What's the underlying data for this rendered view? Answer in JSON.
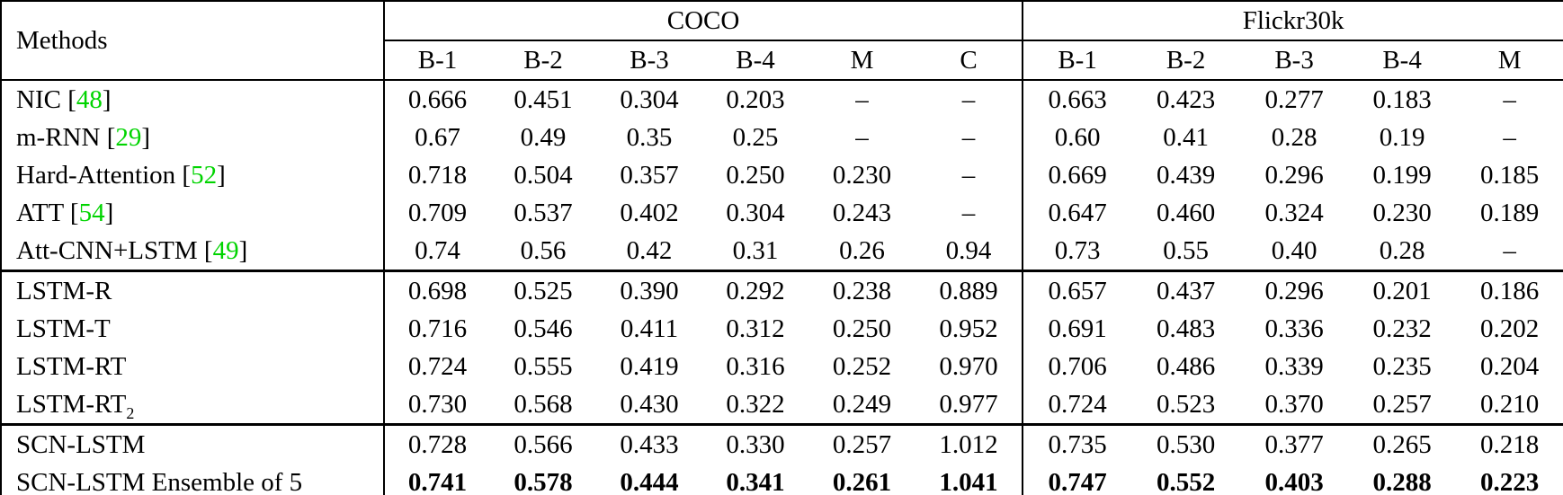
{
  "table": {
    "colors": {
      "citation_green": "#00D400",
      "border": "#000000",
      "background": "#ffffff",
      "text": "#000000"
    },
    "citation_brackets": [
      "[",
      "]"
    ],
    "header": {
      "methods_label": "Methods",
      "groups": [
        {
          "label": "COCO",
          "cols": [
            "B-1",
            "B-2",
            "B-3",
            "B-4",
            "M",
            "C"
          ]
        },
        {
          "label": "Flickr30k",
          "cols": [
            "B-1",
            "B-2",
            "B-3",
            "B-4",
            "M"
          ]
        }
      ]
    },
    "row_groups": [
      {
        "rows": [
          {
            "name": "NIC",
            "cite": "48",
            "coco": [
              "0.666",
              "0.451",
              "0.304",
              "0.203",
              "–",
              "–"
            ],
            "flickr": [
              "0.663",
              "0.423",
              "0.277",
              "0.183",
              "–"
            ]
          },
          {
            "name": "m-RNN",
            "cite": "29",
            "coco": [
              "0.67",
              "0.49",
              "0.35",
              "0.25",
              "–",
              "–"
            ],
            "flickr": [
              "0.60",
              "0.41",
              "0.28",
              "0.19",
              "–"
            ]
          },
          {
            "name": "Hard-Attention",
            "cite": "52",
            "coco": [
              "0.718",
              "0.504",
              "0.357",
              "0.250",
              "0.230",
              "–"
            ],
            "flickr": [
              "0.669",
              "0.439",
              "0.296",
              "0.199",
              "0.185"
            ]
          },
          {
            "name": "ATT",
            "cite": "54",
            "coco": [
              "0.709",
              "0.537",
              "0.402",
              "0.304",
              "0.243",
              "–"
            ],
            "flickr": [
              "0.647",
              "0.460",
              "0.324",
              "0.230",
              "0.189"
            ]
          },
          {
            "name": "Att-CNN+LSTM",
            "cite": "49",
            "coco": [
              "0.74",
              "0.56",
              "0.42",
              "0.31",
              "0.26",
              "0.94"
            ],
            "flickr": [
              "0.73",
              "0.55",
              "0.40",
              "0.28",
              "–"
            ]
          }
        ]
      },
      {
        "rows": [
          {
            "name": "LSTM-R",
            "coco": [
              "0.698",
              "0.525",
              "0.390",
              "0.292",
              "0.238",
              "0.889"
            ],
            "flickr": [
              "0.657",
              "0.437",
              "0.296",
              "0.201",
              "0.186"
            ]
          },
          {
            "name": "LSTM-T",
            "coco": [
              "0.716",
              "0.546",
              "0.411",
              "0.312",
              "0.250",
              "0.952"
            ],
            "flickr": [
              "0.691",
              "0.483",
              "0.336",
              "0.232",
              "0.202"
            ]
          },
          {
            "name": "LSTM-RT",
            "coco": [
              "0.724",
              "0.555",
              "0.419",
              "0.316",
              "0.252",
              "0.970"
            ],
            "flickr": [
              "0.706",
              "0.486",
              "0.339",
              "0.235",
              "0.204"
            ]
          },
          {
            "name": "LSTM-RT",
            "sub": "2",
            "coco": [
              "0.730",
              "0.568",
              "0.430",
              "0.322",
              "0.249",
              "0.977"
            ],
            "flickr": [
              "0.724",
              "0.523",
              "0.370",
              "0.257",
              "0.210"
            ]
          }
        ]
      },
      {
        "rows": [
          {
            "name": "SCN-LSTM",
            "coco": [
              "0.728",
              "0.566",
              "0.433",
              "0.330",
              "0.257",
              "1.012"
            ],
            "flickr": [
              "0.735",
              "0.530",
              "0.377",
              "0.265",
              "0.218"
            ]
          },
          {
            "name": "SCN-LSTM Ensemble of 5",
            "bold": true,
            "coco": [
              "0.741",
              "0.578",
              "0.444",
              "0.341",
              "0.261",
              "1.041"
            ],
            "flickr": [
              "0.747",
              "0.552",
              "0.403",
              "0.288",
              "0.223"
            ]
          }
        ]
      }
    ]
  }
}
